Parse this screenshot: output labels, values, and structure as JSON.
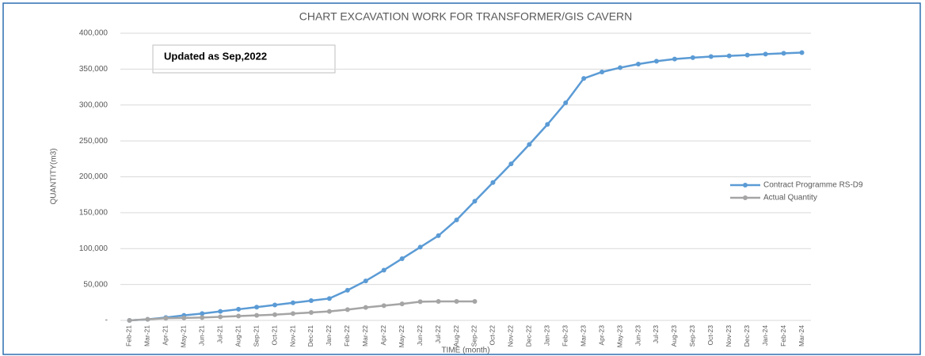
{
  "chart_data": {
    "type": "line",
    "title": "CHART EXCAVATION WORK FOR TRANSFORMER/GIS CAVERN",
    "annotation": "Updated as Sep,2022",
    "y_label": "QUANTITY(m3)",
    "x_label": "TIME (month)",
    "categories": [
      "Feb-21",
      "Mar-21",
      "Apr-21",
      "May-21",
      "Jun-21",
      "Jul-21",
      "Aug-21",
      "Sep-21",
      "Oct-21",
      "Nov-21",
      "Dec-21",
      "Jan-22",
      "Feb-22",
      "Mar-22",
      "Apr-22",
      "May-22",
      "Jun-22",
      "Jul-22",
      "Aug-22",
      "Sep-22",
      "Oct-22",
      "Nov-22",
      "Dec-22",
      "Jan-23",
      "Feb-23",
      "Mar-23",
      "Apr-23",
      "May-23",
      "Jun-23",
      "Jul-23",
      "Aug-23",
      "Sep-23",
      "Oct-23",
      "Nov-23",
      "Dec-23",
      "Jan-24",
      "Feb-24",
      "Mar-24"
    ],
    "series": [
      {
        "name": "Contract Programme RS-D9",
        "color": "#5b9bd5",
        "values": [
          0,
          1500,
          4000,
          7000,
          9500,
          12500,
          15500,
          18500,
          21500,
          24500,
          27500,
          30500,
          42000,
          55000,
          70000,
          86000,
          102000,
          118000,
          140000,
          166000,
          192000,
          218000,
          245000,
          273000,
          303000,
          337000,
          346000,
          352000,
          357000,
          361000,
          364000,
          366000,
          367500,
          368500,
          369500,
          371000,
          372000,
          373000
        ]
      },
      {
        "name": "Actual Quantity",
        "color": "#a5a5a5",
        "values": [
          0,
          1500,
          3000,
          3500,
          4000,
          5000,
          6000,
          7000,
          8000,
          9500,
          11000,
          12500,
          15000,
          18000,
          20500,
          23000,
          26000,
          26500,
          26500,
          26500,
          null,
          null,
          null,
          null,
          null,
          null,
          null,
          null,
          null,
          null,
          null,
          null,
          null,
          null,
          null,
          null,
          null,
          null
        ]
      }
    ],
    "ylim": [
      0,
      400000
    ],
    "yticks": [
      {
        "value": 0,
        "label": "-"
      },
      {
        "value": 50000,
        "label": "50,000"
      },
      {
        "value": 100000,
        "label": "100,000"
      },
      {
        "value": 150000,
        "label": "150,000"
      },
      {
        "value": 200000,
        "label": "200,000"
      },
      {
        "value": 250000,
        "label": "250,000"
      },
      {
        "value": 300000,
        "label": "300,000"
      },
      {
        "value": 350000,
        "label": "350,000"
      },
      {
        "value": 400000,
        "label": "400,000"
      }
    ],
    "grid": true,
    "legend": "right"
  }
}
